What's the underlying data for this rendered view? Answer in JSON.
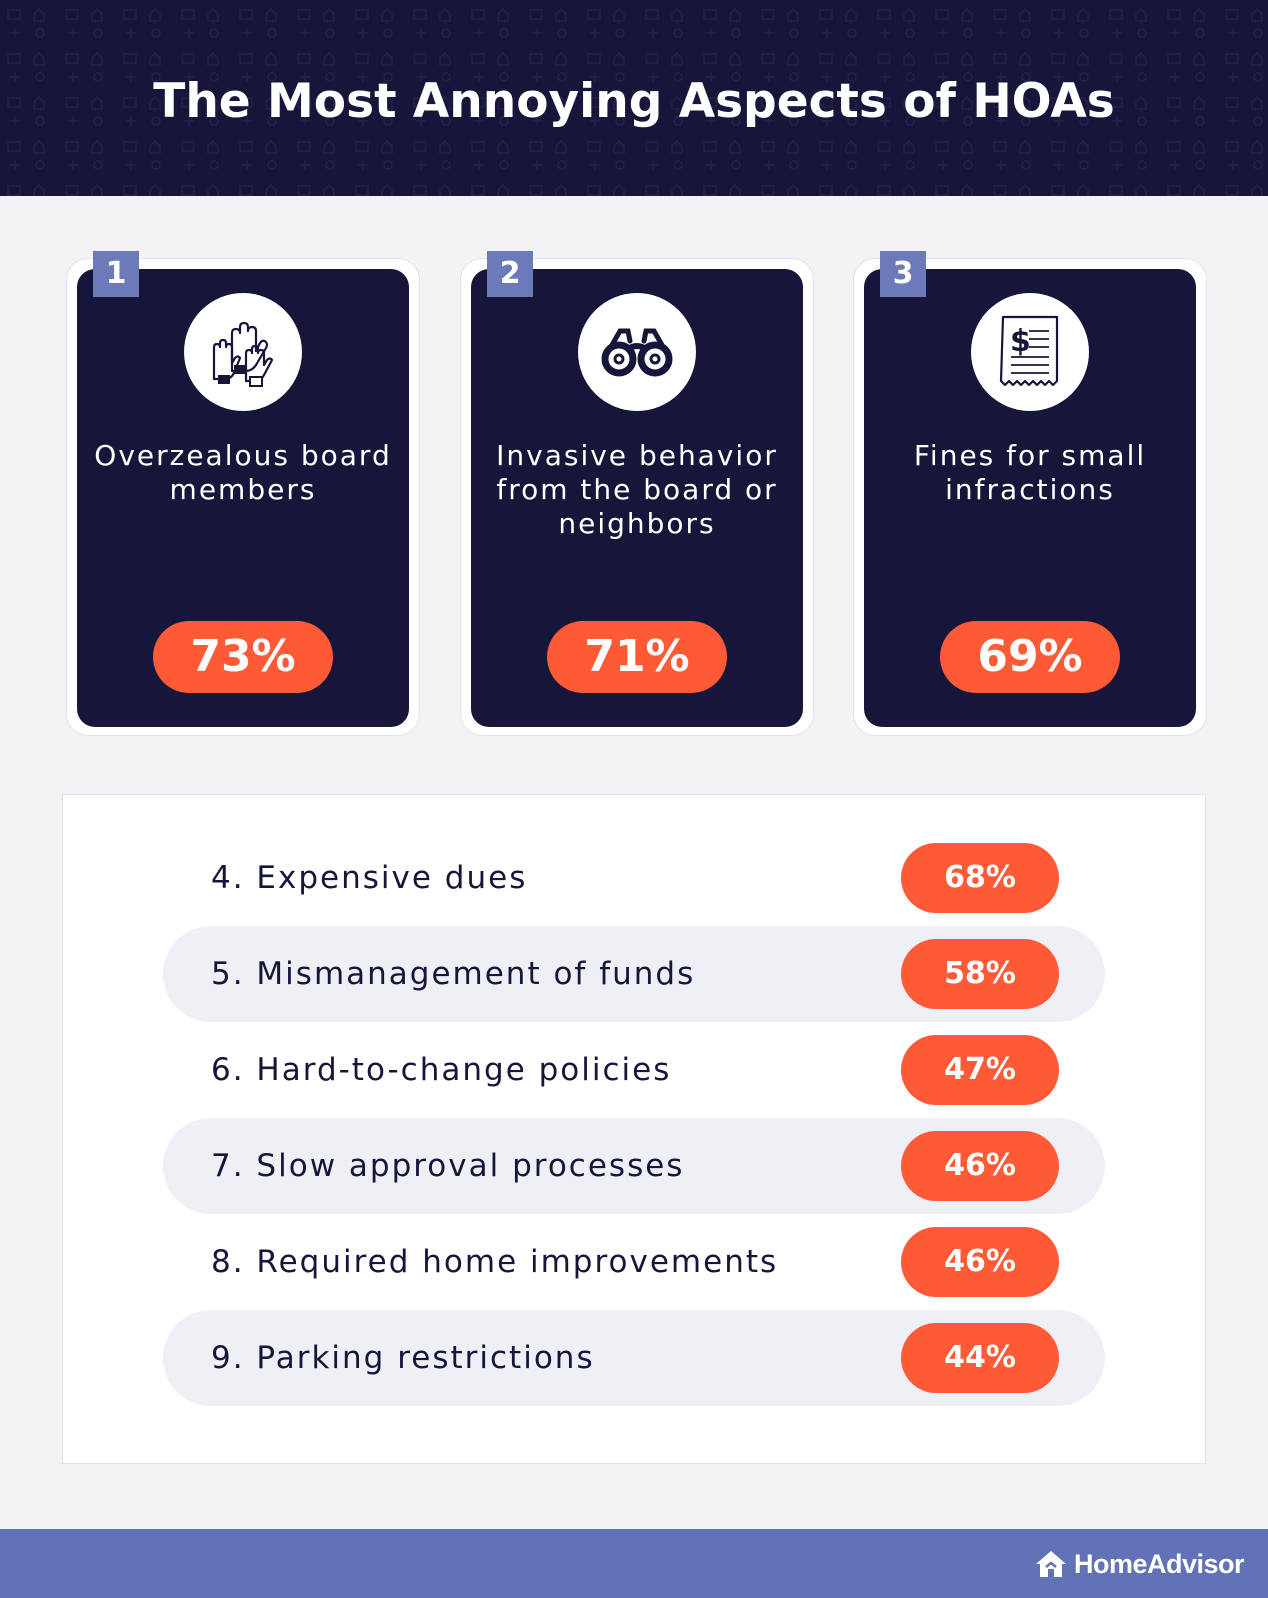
{
  "header": {
    "title": "The Most Annoying Aspects of HOAs"
  },
  "top_cards": [
    {
      "rank": "1",
      "label": "Overzealous board members",
      "percent": "73%",
      "icon": "raised-hands-icon"
    },
    {
      "rank": "2",
      "label": "Invasive behavior from the board or neighbors",
      "percent": "71%",
      "icon": "binoculars-icon"
    },
    {
      "rank": "3",
      "label": "Fines for small infractions",
      "percent": "69%",
      "icon": "receipt-dollar-icon"
    }
  ],
  "list_items": [
    {
      "label": "4. Expensive dues",
      "percent": "68%"
    },
    {
      "label": "5. Mismanagement of funds",
      "percent": "58%"
    },
    {
      "label": "6. Hard-to-change policies",
      "percent": "47%"
    },
    {
      "label": "7. Slow approval processes",
      "percent": "46%"
    },
    {
      "label": "8. Required home improvements",
      "percent": "46%"
    },
    {
      "label": "9. Parking restrictions",
      "percent": "44%"
    }
  ],
  "footer": {
    "brand": "HomeAdvisor",
    "brand_icon": "house-logo-icon"
  },
  "colors": {
    "navy": "#16163a",
    "accent": "#ff5a36",
    "badge": "#6c7ab9",
    "footer": "#6272b6",
    "row_shade": "#eef0f6"
  }
}
